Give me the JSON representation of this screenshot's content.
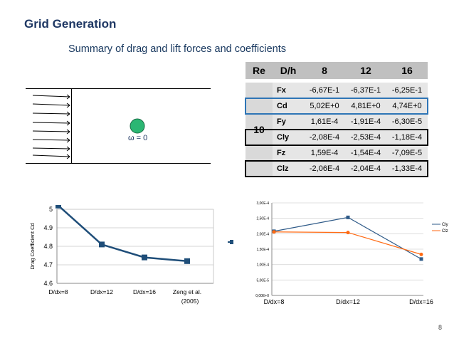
{
  "title": "Grid Generation",
  "subtitle": "Summary of drag and lift forces and coefficients",
  "diagram": {
    "omega_label": "ω = 0"
  },
  "table": {
    "header": [
      "Re",
      "D/h",
      "8",
      "12",
      "16"
    ],
    "re_value": "10",
    "rows": [
      {
        "label": "Fx",
        "values": [
          "-6,67E-1",
          "-6,37E-1",
          "-6,25E-1"
        ]
      },
      {
        "label": "Cd",
        "values": [
          "5,02E+0",
          "4,81E+0",
          "4,74E+0"
        ]
      },
      {
        "label": "Fy",
        "values": [
          "1,61E-4",
          "-1,91E-4",
          "-6,30E-5"
        ]
      },
      {
        "label": "Cly",
        "values": [
          "-2,08E-4",
          "-2,53E-4",
          "-1,18E-4"
        ]
      },
      {
        "label": "Fz",
        "values": [
          "1,59E-4",
          "-1,54E-4",
          "-7,09E-5"
        ]
      },
      {
        "label": "Clz",
        "values": [
          "-2,06E-4",
          "-2,04E-4",
          "-1,33E-4"
        ]
      }
    ]
  },
  "chart_data": [
    {
      "type": "line",
      "categories": [
        "D/dx=8",
        "D/dx=12",
        "D/dx=16",
        "Zeng et al. (2005)"
      ],
      "series": [
        {
          "name": "Cd",
          "values": [
            5.02,
            4.81,
            4.74,
            4.72
          ],
          "color": "#1f4e79"
        }
      ],
      "ylabel": "Drag Coefficient Cd",
      "ylim": [
        4.6,
        5.0
      ],
      "yticks": [
        "4.6",
        "4.7",
        "4.8",
        "4.9",
        "5"
      ],
      "grid": true,
      "legend": "right"
    },
    {
      "type": "line",
      "categories": [
        "D/dx=8",
        "D/dx=12",
        "D/dx=16"
      ],
      "series": [
        {
          "name": "Cly",
          "values": [
            0.000208,
            0.000253,
            0.000118
          ],
          "color": "#2e5a88"
        },
        {
          "name": "Clz",
          "values": [
            0.000206,
            0.000204,
            0.000133
          ],
          "color": "#ff6a13"
        }
      ],
      "ylim": [
        0,
        0.0003
      ],
      "yticks": [
        "0,00E+0",
        "5,00E-5",
        "1,00E-4",
        "1,50E-4",
        "2,00E-4",
        "2,50E-4",
        "3,00E-4"
      ],
      "grid": true,
      "legend": "right"
    }
  ],
  "page_number": "8"
}
